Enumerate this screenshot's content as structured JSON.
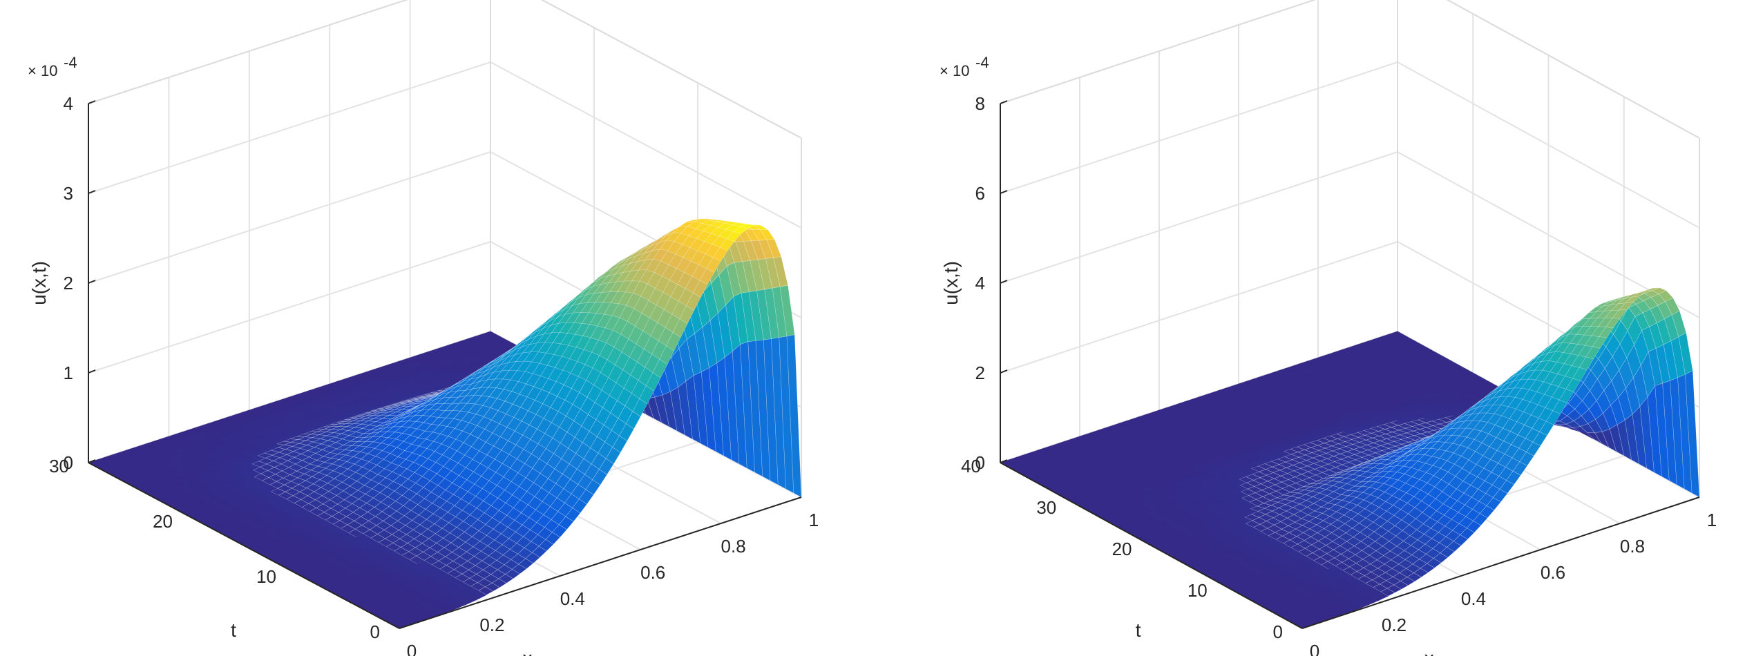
{
  "chart_data": [
    {
      "type": "surface",
      "title": "",
      "xlabel": "x",
      "ylabel": "t",
      "zlabel": "u(x,t)",
      "z_exponent_label": "× 10",
      "z_exponent_power": "-4",
      "xlim": [
        0,
        1
      ],
      "ylim": [
        0,
        30
      ],
      "zlim": [
        0,
        4
      ],
      "x_ticks": [
        "0",
        "0.2",
        "0.4",
        "0.6",
        "0.8",
        "1"
      ],
      "y_ticks": [
        "0",
        "10",
        "20",
        "30"
      ],
      "z_ticks": [
        "0",
        "1",
        "2",
        "3",
        "4"
      ],
      "grid": true,
      "colormap": "parula",
      "peak": {
        "x": 0.88,
        "t": 0,
        "u": 3.2
      },
      "ridge": [
        {
          "t": 0,
          "x_peak": 0.88,
          "u_peak": 3.2
        },
        {
          "t": 5,
          "x_peak": 0.86,
          "u_peak": 3.0
        },
        {
          "t": 10,
          "x_peak": 0.82,
          "u_peak": 2.3
        },
        {
          "t": 15,
          "x_peak": 0.75,
          "u_peak": 1.3
        },
        {
          "t": 20,
          "x_peak": 0.66,
          "u_peak": 0.45
        },
        {
          "t": 25,
          "x_peak": 0.55,
          "u_peak": 0.05
        },
        {
          "t": 30,
          "x_peak": 0.5,
          "u_peak": 0.0
        }
      ]
    },
    {
      "type": "surface",
      "title": "",
      "xlabel": "x",
      "ylabel": "t",
      "zlabel": "u(x,t)",
      "z_exponent_label": "× 10",
      "z_exponent_power": "-4",
      "xlim": [
        0,
        1
      ],
      "ylim": [
        0,
        40
      ],
      "zlim": [
        0,
        8
      ],
      "x_ticks": [
        "0",
        "0.2",
        "0.4",
        "0.6",
        "0.8",
        "1"
      ],
      "y_ticks": [
        "0",
        "10",
        "20",
        "30",
        "40"
      ],
      "z_ticks": [
        "0",
        "2",
        "4",
        "6",
        "8"
      ],
      "grid": true,
      "colormap": "parula",
      "peak": {
        "x": 0.88,
        "t": 0,
        "u": 5.0
      },
      "ridge": [
        {
          "t": 0,
          "x_peak": 0.88,
          "u_peak": 5.0
        },
        {
          "t": 5,
          "x_peak": 0.86,
          "u_peak": 4.3
        },
        {
          "t": 10,
          "x_peak": 0.8,
          "u_peak": 2.8
        },
        {
          "t": 15,
          "x_peak": 0.72,
          "u_peak": 1.2
        },
        {
          "t": 20,
          "x_peak": 0.62,
          "u_peak": 0.3
        },
        {
          "t": 30,
          "x_peak": 0.5,
          "u_peak": 0.0
        },
        {
          "t": 40,
          "x_peak": 0.5,
          "u_peak": 0.0
        }
      ]
    }
  ]
}
